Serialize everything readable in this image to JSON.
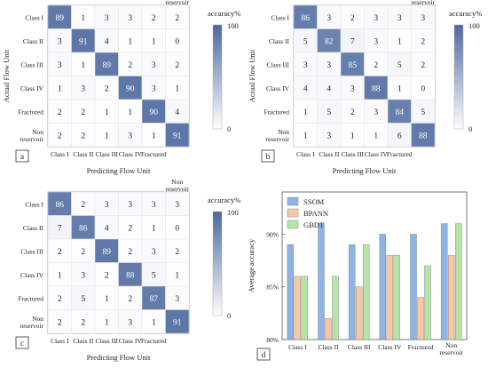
{
  "figure_labels": [
    "a",
    "b",
    "c",
    "d"
  ],
  "chart_data": [
    {
      "type": "heatmap",
      "panel": "a",
      "x_tick_labels": [
        "Class I",
        "Class II",
        "Class III",
        "Class IV",
        "Fractured",
        "Non reservoir"
      ],
      "y_tick_labels": [
        "Class I",
        "Class II",
        "Class III",
        "Class IV",
        "Fractured",
        "Non reservoir"
      ],
      "xlabel": "Predicting Flow Unit",
      "ylabel": "Actual Flow Unit",
      "colorbar_label": "accuracy%",
      "colorbar_range": [
        0,
        100
      ],
      "values": [
        [
          89,
          1,
          3,
          3,
          2,
          2
        ],
        [
          3,
          91,
          4,
          1,
          1,
          0
        ],
        [
          3,
          1,
          89,
          2,
          3,
          2
        ],
        [
          1,
          3,
          2,
          90,
          3,
          1
        ],
        [
          2,
          2,
          1,
          1,
          90,
          4
        ],
        [
          2,
          2,
          1,
          3,
          1,
          91
        ]
      ]
    },
    {
      "type": "heatmap",
      "panel": "b",
      "x_tick_labels": [
        "Class I",
        "Class II",
        "Class III",
        "Class IV",
        "Fractured",
        "Non reservoir"
      ],
      "y_tick_labels": [
        "Class I",
        "Class II",
        "Class III",
        "Class IV",
        "Fractured",
        "Non reservoir"
      ],
      "xlabel": "Predicting Flow Unit",
      "ylabel": "Actual Flow Unit",
      "colorbar_label": "accuracy%",
      "colorbar_range": [
        0,
        100
      ],
      "values": [
        [
          86,
          3,
          2,
          3,
          3,
          3
        ],
        [
          5,
          82,
          7,
          3,
          1,
          2
        ],
        [
          3,
          3,
          85,
          2,
          5,
          2
        ],
        [
          4,
          4,
          3,
          88,
          1,
          0
        ],
        [
          1,
          5,
          2,
          3,
          84,
          5
        ],
        [
          1,
          3,
          1,
          1,
          6,
          88
        ]
      ]
    },
    {
      "type": "heatmap",
      "panel": "c",
      "x_tick_labels": [
        "Class I",
        "Class II",
        "Class III",
        "Class IV",
        "Fractured",
        "Non reservoir"
      ],
      "y_tick_labels": [
        "Class I",
        "Class II",
        "Class III",
        "Class IV",
        "Fractured",
        "Non reservoir"
      ],
      "xlabel": "Predicting Flow Unit",
      "ylabel": "",
      "colorbar_label": "accuracy%",
      "colorbar_range": [
        0,
        100
      ],
      "values": [
        [
          86,
          2,
          3,
          3,
          3,
          3
        ],
        [
          7,
          86,
          4,
          2,
          1,
          0
        ],
        [
          2,
          2,
          89,
          2,
          3,
          2
        ],
        [
          1,
          3,
          2,
          88,
          5,
          1
        ],
        [
          2,
          5,
          1,
          2,
          87,
          3
        ],
        [
          2,
          2,
          1,
          3,
          1,
          91
        ]
      ]
    },
    {
      "type": "bar",
      "panel": "d",
      "categories": [
        "Class I",
        "Class II",
        "Class III",
        "Class IV",
        "Fractured",
        "Non reservoir"
      ],
      "ylabel": "Average accuracy",
      "ylim": [
        80,
        94
      ],
      "yticks": [
        80,
        85,
        90
      ],
      "ytick_labels": [
        "80%",
        "85%",
        "90%"
      ],
      "legend_position": "top-left",
      "series": [
        {
          "name": "SSOM",
          "color": "#8eb4e3",
          "values": [
            89,
            91,
            89,
            90,
            90,
            91
          ]
        },
        {
          "name": "BPANN",
          "color": "#f9c6a6",
          "values": [
            86,
            82,
            85,
            88,
            84,
            88
          ]
        },
        {
          "name": "GBDT",
          "color": "#b8e3a8",
          "values": [
            86,
            86,
            89,
            88,
            87,
            91
          ]
        }
      ]
    }
  ]
}
